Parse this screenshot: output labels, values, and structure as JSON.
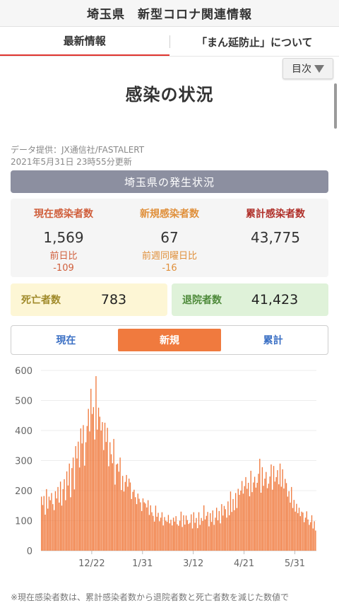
{
  "page_title": "埼玉県　新型コロナ関連情報",
  "tabs": [
    {
      "label": "最新情報"
    },
    {
      "label": "「まん延防止」について"
    }
  ],
  "toc": {
    "label": "目次"
  },
  "section_heading": "感染の状況",
  "source": {
    "provider": "データ提供：JX通信社/FASTALERT",
    "updated": "2021年5月31日 23時55分更新"
  },
  "status_header": "埼玉県の発生状況",
  "stats": {
    "current": {
      "label": "現在感染者数",
      "value": "1,569",
      "sub_label": "前日比",
      "sub_value": "-109"
    },
    "new": {
      "label": "新規感染者数",
      "value": "67",
      "sub_label": "前週同曜日比",
      "sub_value": "-16"
    },
    "total": {
      "label": "累計感染者数",
      "value": "43,775"
    }
  },
  "deaths": {
    "label": "死亡者数",
    "value": "783"
  },
  "recovered": {
    "label": "退院者数",
    "value": "41,423"
  },
  "segments": [
    {
      "label": "現在"
    },
    {
      "label": "新規"
    },
    {
      "label": "累計"
    }
  ],
  "note": "※現在感染者数は、累計感染者数から退院者数と死亡者数を減じた数値で",
  "colors": {
    "bar": "#f07a3e",
    "accent": "#e0342f",
    "segment_active": "#f07a3e"
  },
  "chart_data": {
    "type": "bar",
    "ylim": [
      0,
      600
    ],
    "yticks": [
      0,
      100,
      200,
      300,
      400,
      500,
      600
    ],
    "xtick_labels": [
      "12/22",
      "1/31",
      "3/12",
      "4/21",
      "5/31"
    ],
    "xtick_index": [
      40,
      80,
      120,
      160,
      200
    ],
    "grid": true,
    "values": [
      180,
      152,
      182,
      120,
      205,
      140,
      180,
      168,
      192,
      155,
      135,
      198,
      174,
      212,
      160,
      230,
      150,
      205,
      238,
      168,
      264,
      217,
      290,
      178,
      275,
      310,
      204,
      348,
      307,
      363,
      277,
      407,
      357,
      418,
      283,
      361,
      415,
      472,
      397,
      539,
      455,
      478,
      370,
      581,
      403,
      476,
      446,
      400,
      428,
      335,
      426,
      362,
      409,
      281,
      361,
      321,
      291,
      372,
      220,
      287,
      290,
      263,
      310,
      202,
      249,
      197,
      229,
      252,
      213,
      240,
      227,
      172,
      196,
      203,
      178,
      155,
      190,
      173,
      161,
      132,
      174,
      161,
      157,
      144,
      168,
      119,
      151,
      128,
      116,
      97,
      150,
      113,
      126,
      98,
      110,
      128,
      84,
      112,
      100,
      96,
      119,
      91,
      103,
      84,
      110,
      97,
      115,
      88,
      83,
      100,
      130,
      79,
      118,
      87,
      117,
      102,
      89,
      93,
      121,
      74,
      128,
      93,
      109,
      75,
      128,
      86,
      109,
      99,
      151,
      104,
      116,
      129,
      81,
      125,
      96,
      134,
      86,
      110,
      143,
      101,
      132,
      91,
      155,
      117,
      149,
      138,
      110,
      164,
      118,
      197,
      129,
      172,
      135,
      192,
      142,
      206,
      186,
      200,
      232,
      190,
      215,
      245,
      206,
      226,
      181,
      266,
      195,
      227,
      246,
      210,
      226,
      256,
      306,
      193,
      278,
      216,
      240,
      262,
      208,
      223,
      247,
      287,
      203,
      282,
      230,
      245,
      268,
      221,
      290,
      213,
      271,
      207,
      239,
      225,
      180,
      198,
      160,
      212,
      142,
      169,
      130,
      156,
      125,
      143,
      115,
      130,
      127,
      95,
      110,
      131,
      104,
      86,
      95,
      118,
      74,
      98,
      67
    ]
  }
}
